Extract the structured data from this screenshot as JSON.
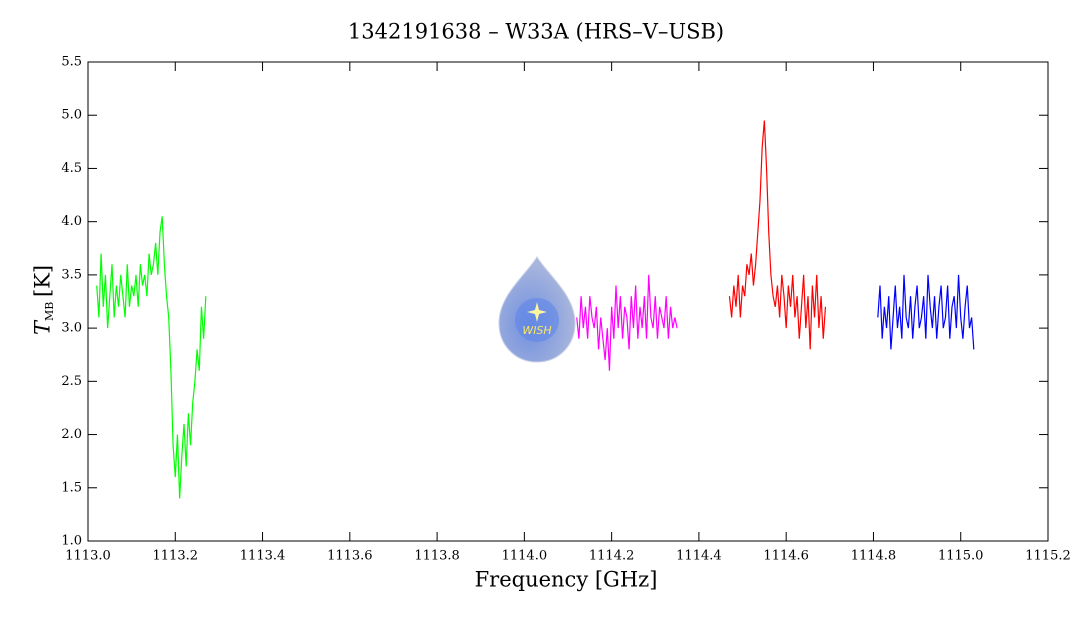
{
  "chart_data": {
    "type": "line",
    "title": "1342191638 – W33A (HRS–V–USB)",
    "xlabel": "Frequency [GHz]",
    "ylabel": "T",
    "ylabel_sub": "MB",
    "ylabel_unit": "[K]",
    "logo": "WISH",
    "xlim": [
      1113.0,
      1115.2
    ],
    "ylim": [
      1.0,
      5.5
    ],
    "xticks": [
      {
        "value": 1113.0,
        "label": "1113.0"
      },
      1113.2,
      1113.4,
      1113.6,
      1113.8,
      {
        "value": 1114.0,
        "label": "1114.0"
      },
      1114.2,
      1114.4,
      1114.6,
      1114.8,
      {
        "value": 1115.0,
        "label": "1115.0"
      },
      1115.2
    ],
    "yticks": [
      {
        "value": 1.0,
        "label": "1.0"
      },
      1.5,
      {
        "value": 2.0,
        "label": "2.0"
      },
      2.5,
      {
        "value": 3.0,
        "label": "3.0"
      },
      3.5,
      {
        "value": 4.0,
        "label": "4.0"
      },
      4.5,
      {
        "value": 5.0,
        "label": "5.0"
      },
      5.5
    ],
    "series": [
      {
        "color": "#00ff00",
        "x": [
          1113.02,
          1113.025,
          1113.03,
          1113.035,
          1113.04,
          1113.045,
          1113.05,
          1113.055,
          1113.06,
          1113.065,
          1113.07,
          1113.075,
          1113.08,
          1113.085,
          1113.09,
          1113.095,
          1113.1,
          1113.105,
          1113.11,
          1113.115,
          1113.12,
          1113.125,
          1113.13,
          1113.135,
          1113.14,
          1113.145,
          1113.15,
          1113.155,
          1113.16,
          1113.165,
          1113.17,
          1113.175,
          1113.18,
          1113.185,
          1113.19,
          1113.195,
          1113.2,
          1113.205,
          1113.21,
          1113.215,
          1113.22,
          1113.225,
          1113.23,
          1113.235,
          1113.24,
          1113.245,
          1113.25,
          1113.255,
          1113.26,
          1113.265,
          1113.27
        ],
        "values": [
          3.4,
          3.1,
          3.7,
          3.2,
          3.5,
          3.0,
          3.3,
          3.6,
          3.1,
          3.4,
          3.2,
          3.5,
          3.3,
          3.1,
          3.6,
          3.2,
          3.4,
          3.3,
          3.5,
          3.2,
          3.6,
          3.4,
          3.5,
          3.3,
          3.7,
          3.5,
          3.6,
          3.8,
          3.5,
          3.9,
          4.05,
          3.6,
          3.3,
          3.1,
          2.6,
          1.9,
          1.6,
          2.0,
          1.4,
          1.8,
          2.1,
          1.7,
          2.2,
          1.9,
          2.3,
          2.5,
          2.8,
          2.6,
          3.2,
          2.9,
          3.3
        ]
      },
      {
        "color": "#ff00ff",
        "x": [
          1114.12,
          1114.125,
          1114.13,
          1114.135,
          1114.14,
          1114.145,
          1114.15,
          1114.155,
          1114.16,
          1114.165,
          1114.17,
          1114.175,
          1114.18,
          1114.185,
          1114.19,
          1114.195,
          1114.2,
          1114.205,
          1114.21,
          1114.215,
          1114.22,
          1114.225,
          1114.23,
          1114.235,
          1114.24,
          1114.245,
          1114.25,
          1114.255,
          1114.26,
          1114.265,
          1114.27,
          1114.275,
          1114.28,
          1114.285,
          1114.29,
          1114.295,
          1114.3,
          1114.305,
          1114.31,
          1114.315,
          1114.32,
          1114.325,
          1114.33,
          1114.335,
          1114.34,
          1114.345,
          1114.35
        ],
        "values": [
          3.1,
          2.9,
          3.3,
          3.0,
          3.2,
          2.9,
          3.3,
          3.1,
          3.0,
          3.2,
          2.8,
          3.1,
          2.9,
          2.7,
          3.0,
          2.6,
          3.2,
          2.9,
          3.4,
          3.0,
          3.3,
          2.9,
          3.2,
          3.1,
          2.8,
          3.3,
          3.0,
          3.4,
          2.9,
          3.2,
          3.0,
          3.3,
          2.9,
          3.5,
          3.1,
          3.0,
          3.3,
          2.9,
          3.2,
          3.1,
          3.0,
          3.3,
          2.9,
          3.2,
          3.0,
          3.1,
          3.0
        ]
      },
      {
        "color": "#ff0000",
        "x": [
          1114.47,
          1114.475,
          1114.48,
          1114.485,
          1114.49,
          1114.495,
          1114.5,
          1114.505,
          1114.51,
          1114.515,
          1114.52,
          1114.525,
          1114.53,
          1114.535,
          1114.54,
          1114.545,
          1114.55,
          1114.555,
          1114.56,
          1114.565,
          1114.57,
          1114.575,
          1114.58,
          1114.585,
          1114.59,
          1114.595,
          1114.6,
          1114.605,
          1114.61,
          1114.615,
          1114.62,
          1114.625,
          1114.63,
          1114.635,
          1114.64,
          1114.645,
          1114.65,
          1114.655,
          1114.66,
          1114.665,
          1114.67,
          1114.675,
          1114.68,
          1114.685,
          1114.69
        ],
        "values": [
          3.3,
          3.1,
          3.4,
          3.2,
          3.5,
          3.1,
          3.4,
          3.3,
          3.6,
          3.5,
          3.7,
          3.4,
          3.6,
          3.9,
          4.2,
          4.7,
          4.95,
          4.5,
          3.9,
          3.5,
          3.3,
          3.2,
          3.4,
          3.1,
          3.5,
          3.3,
          3.0,
          3.4,
          3.2,
          3.5,
          3.1,
          3.3,
          2.9,
          3.2,
          3.5,
          3.0,
          3.3,
          2.8,
          3.4,
          3.1,
          3.5,
          3.0,
          3.3,
          2.9,
          3.2
        ]
      },
      {
        "color": "#0000ff",
        "x": [
          1114.81,
          1114.815,
          1114.82,
          1114.825,
          1114.83,
          1114.835,
          1114.84,
          1114.845,
          1114.85,
          1114.855,
          1114.86,
          1114.865,
          1114.87,
          1114.875,
          1114.88,
          1114.885,
          1114.89,
          1114.895,
          1114.9,
          1114.905,
          1114.91,
          1114.915,
          1114.92,
          1114.925,
          1114.93,
          1114.935,
          1114.94,
          1114.945,
          1114.95,
          1114.955,
          1114.96,
          1114.965,
          1114.97,
          1114.975,
          1114.98,
          1114.985,
          1114.99,
          1114.995,
          1115.0,
          1115.005,
          1115.01,
          1115.015,
          1115.02,
          1115.025,
          1115.03
        ],
        "values": [
          3.1,
          3.4,
          2.9,
          3.2,
          3.0,
          3.3,
          2.8,
          3.1,
          3.4,
          3.0,
          3.2,
          2.9,
          3.5,
          3.1,
          3.0,
          3.3,
          2.9,
          3.2,
          3.4,
          3.0,
          3.1,
          3.3,
          2.9,
          3.5,
          3.2,
          3.0,
          3.3,
          2.9,
          3.2,
          3.4,
          3.0,
          3.1,
          3.4,
          2.9,
          3.2,
          3.3,
          3.0,
          3.5,
          3.1,
          2.9,
          3.2,
          3.4,
          3.0,
          3.1,
          2.8
        ]
      }
    ]
  }
}
